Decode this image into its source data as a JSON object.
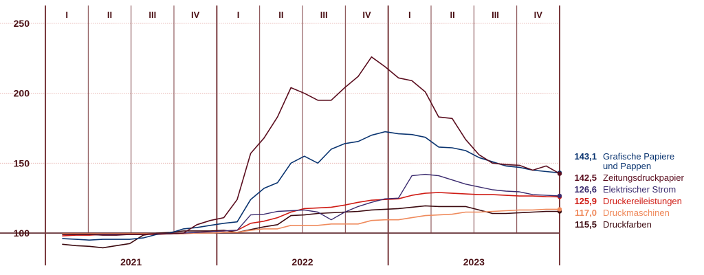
{
  "chart_data": {
    "type": "line",
    "ylim": [
      90,
      250
    ],
    "y_ticks": [
      100,
      150,
      200,
      250
    ],
    "years": [
      "2021",
      "2022",
      "2023"
    ],
    "quarters": [
      "I",
      "II",
      "III",
      "IV"
    ],
    "colors": {
      "axis": "#4a0f14",
      "grid_h": "#e3a6a2",
      "grid_v": "#7a3a3e"
    },
    "series": [
      {
        "name": "Zeitungsdruckpapier",
        "label_value": "142,5",
        "color": "#5a0d1e",
        "width": 1.6,
        "values": [
          99,
          99,
          99,
          98.5,
          98.5,
          99,
          99,
          99.5,
          99.5,
          100,
          106,
          109,
          111,
          124,
          157,
          168,
          183,
          204,
          200,
          195,
          195,
          204,
          212,
          226,
          219,
          211,
          209,
          201,
          183,
          182,
          167,
          156,
          150,
          149,
          148.5,
          145,
          148,
          142.5
        ]
      },
      {
        "name": "Grafische Papiere und Pappen",
        "label_value": "143,1",
        "color": "#0a3470",
        "width": 1.6,
        "values": [
          96,
          95.5,
          95,
          95.5,
          95.5,
          95.5,
          96.5,
          99,
          100,
          103,
          104,
          105.5,
          107,
          108,
          124,
          132,
          136,
          150,
          155,
          150,
          160,
          164,
          165.5,
          170,
          172.5,
          171,
          170.5,
          168.5,
          161.5,
          161,
          159,
          154,
          151,
          148,
          147,
          145,
          144,
          143.1
        ]
      },
      {
        "name": "Elektrischer Strom",
        "label_value": "126,6",
        "color": "#3a2a6e",
        "width": 1.4,
        "values": [
          99,
          99,
          99,
          99,
          99,
          99,
          99,
          99.5,
          99.5,
          100,
          100.5,
          101,
          101.5,
          102,
          113,
          113.5,
          115.5,
          116,
          116.5,
          115,
          109.5,
          115,
          119,
          122,
          124.5,
          125,
          141,
          142,
          141,
          138,
          135,
          133,
          131,
          130,
          129.5,
          127.5,
          127,
          126.6
        ]
      },
      {
        "name": "Druckereileistungen",
        "label_value": "125,9",
        "color": "#cf1b14",
        "width": 1.6,
        "values": [
          98,
          98.5,
          98.5,
          99,
          99,
          99,
          99,
          99,
          99.5,
          100,
          100.5,
          101,
          101.5,
          102,
          107,
          108.5,
          111,
          115,
          117.5,
          118,
          118.5,
          120,
          122,
          123.5,
          124,
          124.5,
          127,
          128.5,
          129,
          128.5,
          128,
          127.5,
          127.5,
          127,
          126.5,
          126.5,
          126,
          125.9
        ]
      },
      {
        "name": "Druckmaschinen",
        "label_value": "117,0",
        "color": "#ef8a5c",
        "width": 1.6,
        "values": [
          99.5,
          99.5,
          99.5,
          99.5,
          99.5,
          99.5,
          99.5,
          99.5,
          99.5,
          99.5,
          100,
          100,
          100.5,
          100.5,
          102,
          103,
          103,
          105.5,
          105.5,
          105.5,
          106.5,
          106.5,
          106.5,
          109,
          109.5,
          109.5,
          111,
          112.5,
          113,
          113.5,
          115,
          115,
          115.5,
          116,
          116.5,
          116.5,
          117,
          117
        ]
      },
      {
        "name": "Druckfarben",
        "label_value": "115,5",
        "color": "#3c0a10",
        "width": 1.6,
        "values": [
          92,
          91,
          90.5,
          89.5,
          91,
          92.5,
          98.5,
          100,
          100.5,
          101.5,
          101.5,
          101.5,
          102,
          100.5,
          102.5,
          104.5,
          106,
          112.5,
          113,
          114,
          114.5,
          115,
          115.5,
          116.5,
          117,
          117.5,
          118.5,
          119.5,
          119,
          119,
          119,
          116.5,
          114,
          114,
          114.5,
          115,
          115.5,
          115.5
        ]
      }
    ],
    "legend": {
      "placement": "right",
      "entries": [
        {
          "value": "143,1",
          "lines": [
            "Grafische Papiere",
            "und Pappen"
          ],
          "color": "#0a3470"
        },
        {
          "value": "142,5",
          "lines": [
            "Zeitungsdruckpapier"
          ],
          "color": "#5a0d1e"
        },
        {
          "value": "126,6",
          "lines": [
            "Elektrischer Strom"
          ],
          "color": "#3a2a6e"
        },
        {
          "value": "125,9",
          "lines": [
            "Druckereileistungen"
          ],
          "color": "#cf1b14"
        },
        {
          "value": "117,0",
          "lines": [
            "Druckmaschinen"
          ],
          "color": "#ef8a5c"
        },
        {
          "value": "115,5",
          "lines": [
            "Druckfarben"
          ],
          "color": "#3c0a10"
        }
      ]
    }
  }
}
